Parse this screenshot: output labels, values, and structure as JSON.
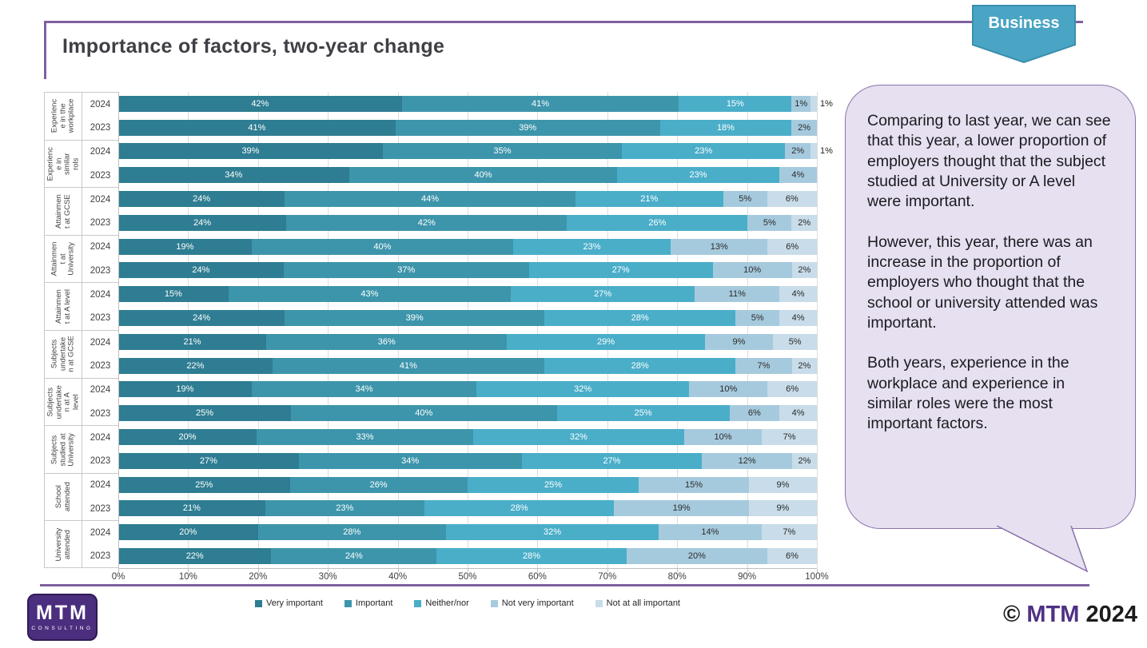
{
  "slide": {
    "title": "Importance of factors, two-year change",
    "banner_label": "Business",
    "accent_purple": "#7E60A0"
  },
  "bubble": {
    "paragraphs": [
      "Comparing to last year, we can see that this year, a lower proportion of employers thought that the subject studied at University or A level were important.",
      "However, this year, there was an increase in the proportion of employers who thought that the school or university attended was important.",
      "Both years, experience in the workplace and experience in similar roles were the most important factors."
    ]
  },
  "chart_data": {
    "type": "bar",
    "stacked": true,
    "orientation": "horizontal",
    "title": "Importance of factors, two-year change",
    "xlabel": "",
    "ylabel": "",
    "xlim": [
      0,
      100
    ],
    "x_ticks": [
      "0%",
      "10%",
      "20%",
      "30%",
      "40%",
      "50%",
      "60%",
      "70%",
      "80%",
      "90%",
      "100%"
    ],
    "grid": true,
    "legend_position": "bottom",
    "series_labels": [
      "Very important",
      "Important",
      "Neither/nor",
      "Not very important",
      "Not at all important"
    ],
    "colors": [
      "#2E7D92",
      "#3D95AB",
      "#4AAEC9",
      "#A6CADD",
      "#C8DCE9"
    ],
    "categories": [
      "Experience in the workplace",
      "Experience in similar roles",
      "Attainment at GCSE",
      "Attainment at University",
      "Attainment at A level",
      "Subjects undertaken at GCSE",
      "Subjects undertaken at A level",
      "Subjects studied at University",
      "School attended",
      "University attended"
    ],
    "groups": [
      {
        "category": "Experience in the workplace",
        "label_lines": [
          "Experienc",
          "e in the",
          "workplace"
        ],
        "rows": [
          {
            "year": "2024",
            "values": [
              42,
              41,
              15,
              1,
              1
            ]
          },
          {
            "year": "2023",
            "values": [
              41,
              39,
              18,
              2
            ]
          }
        ]
      },
      {
        "category": "Experience in similar roles",
        "label_lines": [
          "Experienc",
          "e in",
          "similar",
          "rols"
        ],
        "rows": [
          {
            "year": "2024",
            "values": [
              39,
              35,
              23,
              2,
              1
            ]
          },
          {
            "year": "2023",
            "values": [
              34,
              40,
              23,
              4
            ]
          }
        ]
      },
      {
        "category": "Attainment at GCSE",
        "label_lines": [
          "Attainmen",
          "t at GCSE"
        ],
        "rows": [
          {
            "year": "2024",
            "values": [
              24,
              44,
              21,
              5,
              6
            ]
          },
          {
            "year": "2023",
            "values": [
              24,
              42,
              26,
              5,
              2
            ]
          }
        ]
      },
      {
        "category": "Attainment at University",
        "label_lines": [
          "Attainmen",
          "t at",
          "University"
        ],
        "rows": [
          {
            "year": "2024",
            "values": [
              19,
              40,
              23,
              13,
              6
            ]
          },
          {
            "year": "2023",
            "values": [
              24,
              37,
              27,
              10,
              2
            ]
          }
        ]
      },
      {
        "category": "Attainment at A level",
        "label_lines": [
          "Attainmen",
          "t at A level"
        ],
        "rows": [
          {
            "year": "2024",
            "values": [
              15,
              43,
              27,
              11,
              4
            ]
          },
          {
            "year": "2023",
            "values": [
              24,
              39,
              28,
              5,
              4
            ]
          }
        ]
      },
      {
        "category": "Subjects undertaken at GCSE",
        "label_lines": [
          "Subjects",
          "undertake",
          "n at GCSE"
        ],
        "rows": [
          {
            "year": "2024",
            "values": [
              21,
              36,
              29,
              9,
              5
            ]
          },
          {
            "year": "2023",
            "values": [
              22,
              41,
              28,
              7,
              2
            ]
          }
        ]
      },
      {
        "category": "Subjects undertaken at A level",
        "label_lines": [
          "Subjects",
          "undertake",
          "n at A",
          "level"
        ],
        "rows": [
          {
            "year": "2024",
            "values": [
              19,
              34,
              32,
              10,
              6
            ]
          },
          {
            "year": "2023",
            "values": [
              25,
              40,
              25,
              6,
              4
            ]
          }
        ]
      },
      {
        "category": "Subjects studied at University",
        "label_lines": [
          "Subjects",
          "studied at",
          "University"
        ],
        "rows": [
          {
            "year": "2024",
            "values": [
              20,
              33,
              32,
              10,
              7
            ]
          },
          {
            "year": "2023",
            "values": [
              27,
              34,
              27,
              12,
              2
            ]
          }
        ]
      },
      {
        "category": "School attended",
        "label_lines": [
          "School",
          "attended"
        ],
        "rows": [
          {
            "year": "2024",
            "values": [
              25,
              26,
              25,
              15,
              9
            ]
          },
          {
            "year": "2023",
            "values": [
              21,
              23,
              28,
              19,
              9
            ]
          }
        ]
      },
      {
        "category": "University attended",
        "label_lines": [
          "University",
          "attended"
        ],
        "rows": [
          {
            "year": "2024",
            "values": [
              20,
              28,
              32,
              14,
              7
            ]
          },
          {
            "year": "2023",
            "values": [
              22,
              24,
              28,
              20,
              6
            ]
          }
        ]
      }
    ]
  },
  "logo": {
    "brand": "MTM",
    "sub": "CONSULTING"
  },
  "footer": {
    "copyright": "©",
    "brand": "MTM",
    "year": "2024"
  }
}
